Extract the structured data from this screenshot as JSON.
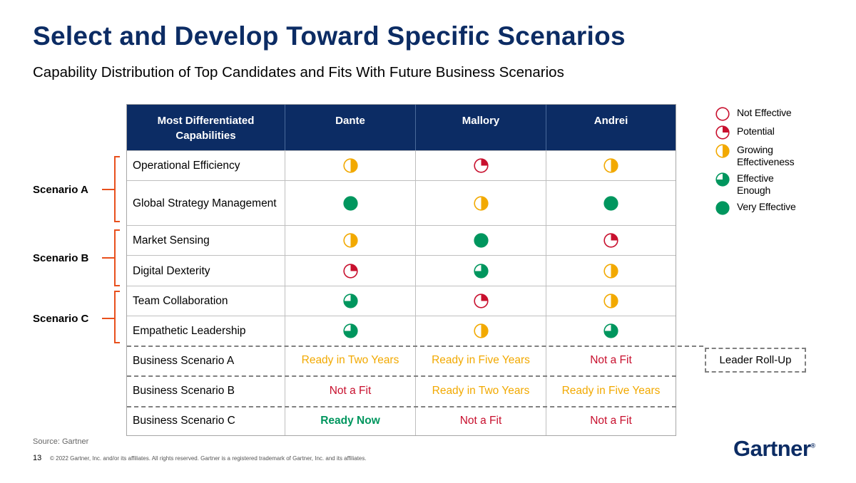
{
  "title": "Select and Develop Toward Specific Scenarios",
  "subtitle": "Capability Distribution of Top Candidates and Fits With Future Business Scenarios",
  "table": {
    "header": [
      "Most Differentiated Capabilities",
      "Dante",
      "Mallory",
      "Andrei"
    ],
    "capability_rows": [
      {
        "label": "Operational Efficiency",
        "ratings": [
          "Growing Effectiveness",
          "Potential",
          "Growing Effectiveness"
        ]
      },
      {
        "label": "Global Strategy Management",
        "ratings": [
          "Very Effective",
          "Growing Effectiveness",
          "Very Effective"
        ]
      },
      {
        "label": "Market Sensing",
        "ratings": [
          "Growing Effectiveness",
          "Very Effective",
          "Potential"
        ]
      },
      {
        "label": "Digital Dexterity",
        "ratings": [
          "Potential",
          "Effective Enough",
          "Growing Effectiveness"
        ]
      },
      {
        "label": "Team Collaboration",
        "ratings": [
          "Effective Enough",
          "Potential",
          "Growing Effectiveness"
        ]
      },
      {
        "label": "Empathetic Leadership",
        "ratings": [
          "Effective Enough",
          "Growing Effectiveness",
          "Effective Enough"
        ]
      }
    ],
    "scenario_rows": [
      {
        "label": "Business Scenario A",
        "values": [
          "Ready in Two Years",
          "Ready in Five Years",
          "Not a Fit"
        ]
      },
      {
        "label": "Business Scenario B",
        "values": [
          "Not a Fit",
          "Ready in Two Years",
          "Ready in Five Years"
        ]
      },
      {
        "label": "Business Scenario C",
        "values": [
          "Ready Now",
          "Not a Fit",
          "Not a Fit"
        ]
      }
    ]
  },
  "scenarios": [
    "Scenario A",
    "Scenario B",
    "Scenario C"
  ],
  "legend": [
    {
      "label": "Not Effective",
      "fraction": 0
    },
    {
      "label": "Potential",
      "fraction": 0.25
    },
    {
      "label": "Growing Effectiveness",
      "fraction": 0.5
    },
    {
      "label": "Effective Enough",
      "fraction": 0.75
    },
    {
      "label": "Very Effective",
      "fraction": 1
    }
  ],
  "rollup_label": "Leader Roll-Up",
  "source": "Source: Gartner",
  "page_number": "13",
  "copyright": "© 2022 Gartner, Inc. and/or its affiliates. All rights reserved. Gartner is a registered trademark of Gartner, Inc. and its affiliates.",
  "logo": "Gartner",
  "colors": {
    "navy": "#0c2c64",
    "red": "#c8102e",
    "yellow": "#f2a900",
    "green": "#00965e",
    "orange": "#e8501d"
  }
}
